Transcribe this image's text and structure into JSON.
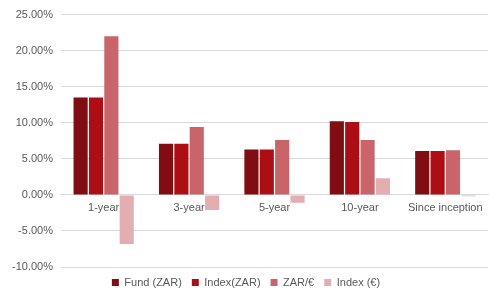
{
  "chart_data": {
    "type": "bar",
    "categories": [
      "1-year",
      "3-year",
      "5-year",
      "10-year",
      "Since inception"
    ],
    "series": [
      {
        "name": "Fund (ZAR)",
        "color": "#7f0d12",
        "values": [
          13.5,
          7.1,
          6.3,
          10.2,
          6.1
        ]
      },
      {
        "name": "Index(ZAR)",
        "color": "#ad0e14",
        "values": [
          13.5,
          7.1,
          6.3,
          10.1,
          6.1
        ]
      },
      {
        "name": "ZAR/€",
        "color": "#c9646a",
        "values": [
          22.0,
          9.4,
          7.6,
          7.6,
          6.2
        ]
      },
      {
        "name": "Index (€)",
        "color": "#e3aeb1",
        "values": [
          -6.8,
          -2.1,
          -1.1,
          2.3,
          -0.2
        ]
      }
    ],
    "ylim": [
      -10,
      25
    ],
    "yticks": [
      {
        "value": -10,
        "label": "-10.00%"
      },
      {
        "value": -5,
        "label": "-5.00%"
      },
      {
        "value": 0,
        "label": "0.00%"
      },
      {
        "value": 5,
        "label": "5.00%"
      },
      {
        "value": 10,
        "label": "10.00%"
      },
      {
        "value": 15,
        "label": "15.00%"
      },
      {
        "value": 20,
        "label": "20.00%"
      },
      {
        "value": 25,
        "label": "25.00%"
      }
    ],
    "grid": true,
    "legend": "bottom"
  }
}
